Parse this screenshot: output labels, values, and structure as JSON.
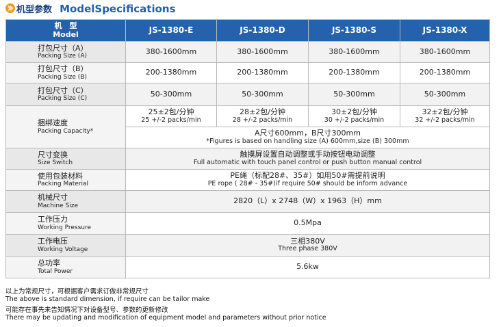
{
  "header": {
    "title_cn": "机型参数",
    "title_en": "ModelSpecifications"
  },
  "table": {
    "head": {
      "label_cn": "机　型",
      "label_en": "Model",
      "models": [
        "JS-1380-E",
        "JS-1380-D",
        "JS-1380-S",
        "JS-1380-X"
      ]
    },
    "rows": [
      {
        "label_cn": "打包尺寸（A）",
        "label_en": "Packing Size (A)",
        "values": [
          "380-1600mm",
          "380-1600mm",
          "380-1600mm",
          "380-1600mm"
        ]
      },
      {
        "label_cn": "打包尺寸（B）",
        "label_en": "Packing Size (B)",
        "values": [
          "200-1380mm",
          "200-1380mm",
          "200-1380mm",
          "200-1380mm"
        ]
      },
      {
        "label_cn": "打包尺寸（C）",
        "label_en": "Packing Size (C)",
        "values": [
          "50-300mm",
          "50-300mm",
          "50-300mm",
          "50-300mm"
        ]
      },
      {
        "label_cn": "捆绑速度",
        "label_en": "Packing Capacity*",
        "values": [
          {
            "cn": "25±2包/分钟",
            "en": "25 +/-2 packs/min"
          },
          {
            "cn": "28±2包/分钟",
            "en": "28 +/-2 packs/min"
          },
          {
            "cn": "30±2包/分钟",
            "en": "30 +/-2 packs/min"
          },
          {
            "cn": "32±2包/分钟",
            "en": "32 +/-2 packs/min"
          }
        ],
        "note": {
          "cn": "A尺寸600mm，B尺寸300mm",
          "en": "*Figures is based on handling size (A) 600mm,size (B) 300mm"
        }
      },
      {
        "label_cn": "尺寸变换",
        "label_en": "Size Switch",
        "merged": {
          "cn": "触摸屏设置自动调整或手动按钮电动调整",
          "en": "Full automatic with touch panel control or push button manual control"
        }
      },
      {
        "label_cn": "使用包装材料",
        "label_en": "Packing Material",
        "merged": {
          "cn": "PE绳（标配28#、35#）如用50#需提前说明",
          "en": "PE rope ( 28# - 35#)if require 50# should be inform advance"
        }
      },
      {
        "label_cn": "机械尺寸",
        "label_en": "Machine Size",
        "merged": {
          "cn": "2820（L）x 2748（W）x 1963（H）mm"
        }
      },
      {
        "label_cn": "工作压力",
        "label_en": "Working Pressure",
        "merged": {
          "cn": "0.5Mpa"
        }
      },
      {
        "label_cn": "工作电压",
        "label_en": "Working Voltage",
        "merged": {
          "cn": "三相380V",
          "en": "Three phase 380V"
        }
      },
      {
        "label_cn": "总功率",
        "label_en": "Total Power",
        "merged": {
          "cn": "5.6kw"
        }
      }
    ]
  },
  "notes": [
    "以上为常规尺寸，可根据客户需求订做非常规尺寸",
    "The above is standard  dimension, if require can be  tailor make",
    "可能存在事先未告知情况下对设备型号、参数的更新修改",
    "There may be updating and modification of equipment model and parameters without prior notice"
  ]
}
